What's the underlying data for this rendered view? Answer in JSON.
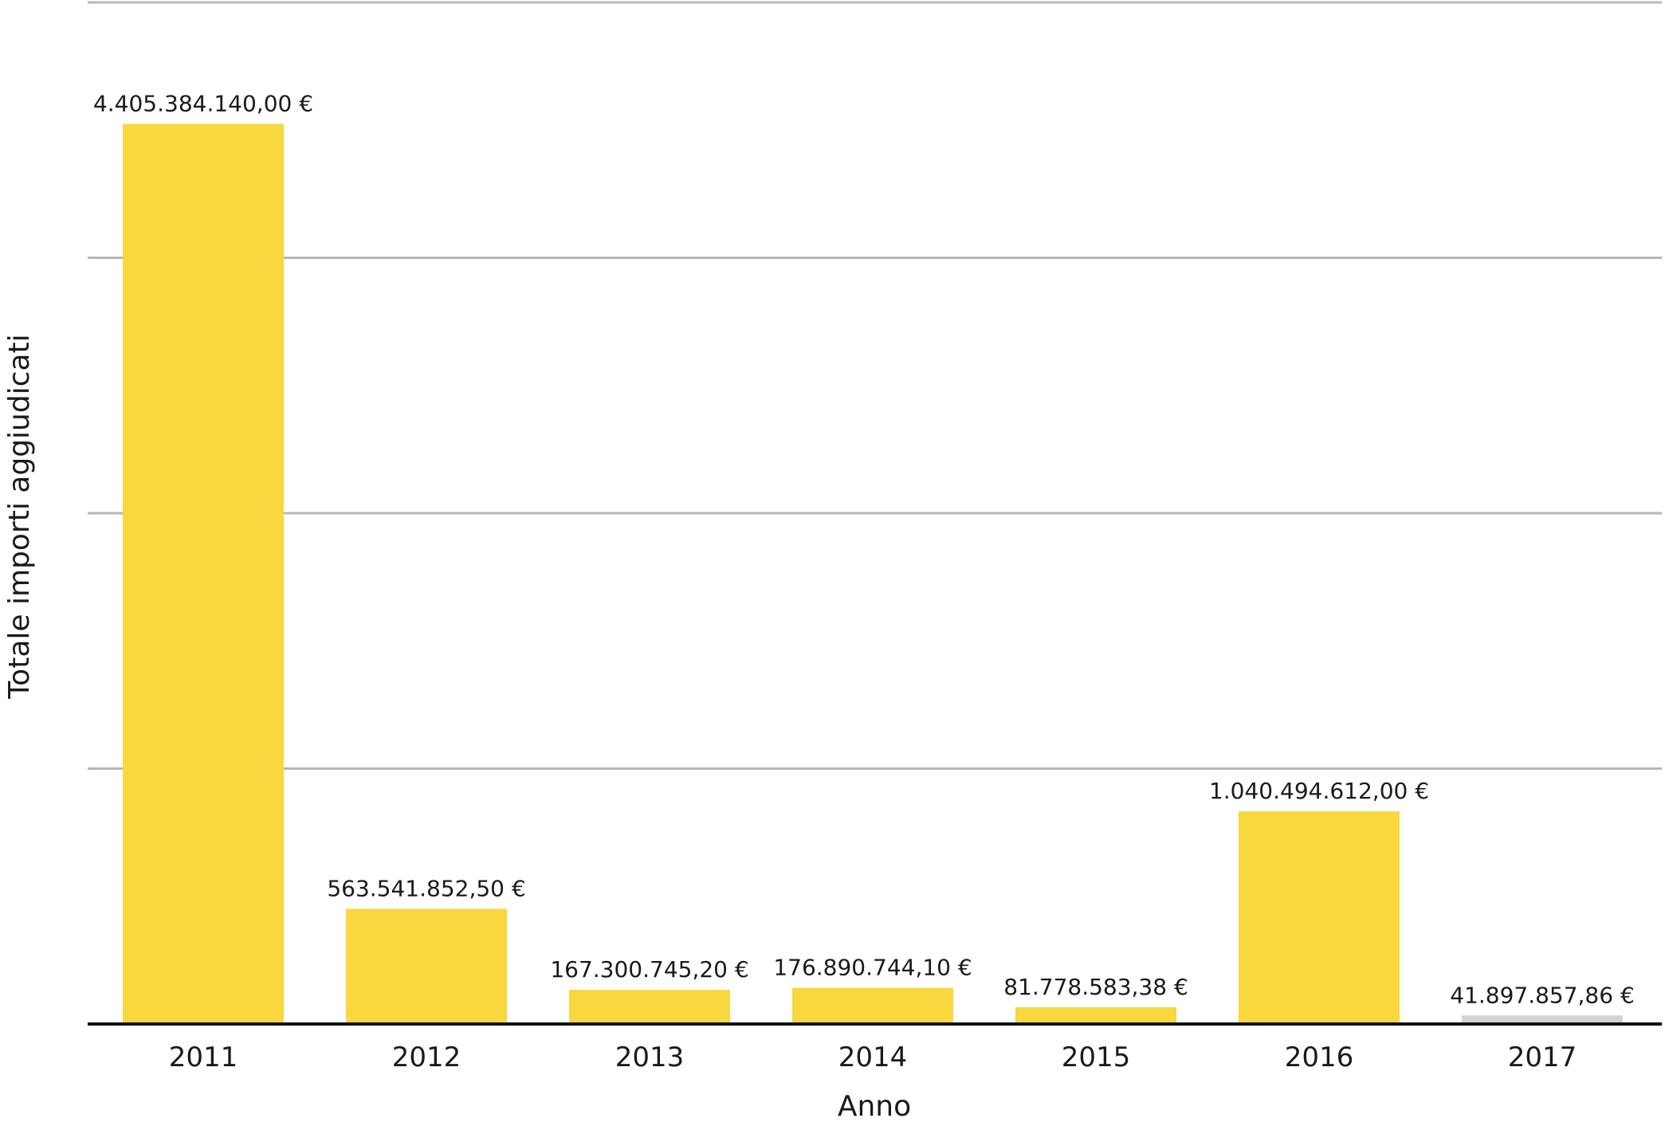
{
  "chart_data": {
    "type": "bar",
    "title": "",
    "xlabel": "Anno",
    "ylabel": "Totale importi aggiudicati",
    "categories": [
      "2011",
      "2012",
      "2013",
      "2014",
      "2015",
      "2016",
      "2017"
    ],
    "values": [
      4405384140.0,
      563541852.5,
      167300745.2,
      176890744.1,
      81778583.38,
      1040494612.0,
      41897857.86
    ],
    "value_labels": [
      "4.405.384.140,00 €",
      "563.541.852,50 €",
      "167.300.745,20 €",
      "176.890.744,10 €",
      "81.778.583,38 €",
      "1.040.494.612,00 €",
      "41.897.857,86 €"
    ],
    "bar_colors": [
      "#f9d73e",
      "#f9d73e",
      "#f9d73e",
      "#f9d73e",
      "#f9d73e",
      "#f9d73e",
      "#d3d3d3"
    ],
    "ylim": [
      0,
      5000000000
    ],
    "y_gridlines": [
      1250000000,
      2500000000,
      3750000000,
      5000000000
    ],
    "grid": true,
    "legend": "none"
  }
}
